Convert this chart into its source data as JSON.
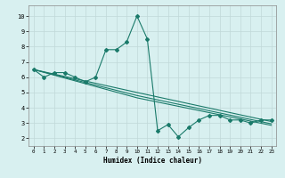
{
  "title": "",
  "xlabel": "Humidex (Indice chaleur)",
  "ylabel": "",
  "xlim": [
    -0.5,
    23.5
  ],
  "ylim": [
    1.5,
    10.7
  ],
  "yticks": [
    2,
    3,
    4,
    5,
    6,
    7,
    8,
    9,
    10
  ],
  "xticks": [
    0,
    1,
    2,
    3,
    4,
    5,
    6,
    7,
    8,
    9,
    10,
    11,
    12,
    13,
    14,
    15,
    16,
    17,
    18,
    19,
    20,
    21,
    22,
    23
  ],
  "bg_color": "#d8f0f0",
  "line_color": "#1a7a6a",
  "grid_color": "#c0d8d8",
  "series": [
    {
      "x": [
        0,
        1,
        2,
        3,
        4,
        5,
        6,
        7,
        8,
        9,
        10,
        11,
        12,
        13,
        14,
        15,
        16,
        17,
        18,
        19,
        20,
        21,
        22,
        23
      ],
      "y": [
        6.5,
        6.0,
        6.3,
        6.3,
        6.0,
        5.7,
        6.0,
        7.8,
        7.8,
        8.3,
        10.0,
        8.5,
        2.5,
        2.9,
        2.1,
        2.7,
        3.2,
        3.5,
        3.5,
        3.2,
        3.2,
        3.0,
        3.2,
        3.2
      ],
      "marker": "D",
      "markersize": 2.0
    },
    {
      "x": [
        0,
        10,
        23
      ],
      "y": [
        6.5,
        5.0,
        3.1
      ],
      "marker": null
    },
    {
      "x": [
        0,
        10,
        23
      ],
      "y": [
        6.5,
        4.8,
        2.95
      ],
      "marker": null
    },
    {
      "x": [
        0,
        10,
        23
      ],
      "y": [
        6.5,
        4.65,
        2.85
      ],
      "marker": null
    }
  ]
}
